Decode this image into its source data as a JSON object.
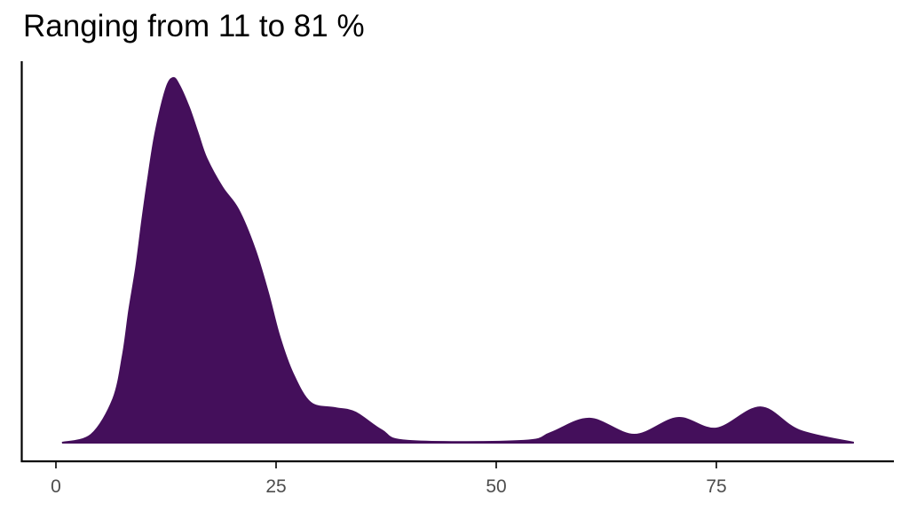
{
  "chart_data": {
    "type": "area",
    "subtype": "density",
    "title": "Ranging from 11 to 81 %",
    "xlabel": "",
    "ylabel": "",
    "xlim": [
      -2.5,
      95
    ],
    "ylim": [
      0,
      1.05
    ],
    "x_ticks": [
      0,
      25,
      50,
      75
    ],
    "x_tick_labels": [
      "0",
      "25",
      "50",
      "75"
    ],
    "y_ticks": [],
    "grid": false,
    "legend": null,
    "fill_color": "#440F5B",
    "series": [
      {
        "name": "density",
        "x": [
          0.7,
          4.0,
          6.5,
          7.6,
          8.3,
          9.1,
          9.8,
          10.5,
          11.3,
          12.5,
          13.3,
          14.0,
          15.1,
          16.1,
          17.1,
          18.9,
          20.7,
          22.6,
          24.1,
          25.4,
          26.9,
          28.9,
          31.7,
          34.0,
          37.0,
          40.0,
          53.1,
          56.2,
          60.6,
          65.7,
          70.6,
          75.0,
          80.0,
          84.4,
          90.6
        ],
        "values": [
          0.0,
          0.022,
          0.12,
          0.24,
          0.36,
          0.48,
          0.61,
          0.73,
          0.85,
          0.97,
          1.0,
          0.98,
          0.92,
          0.85,
          0.78,
          0.7,
          0.64,
          0.53,
          0.41,
          0.29,
          0.19,
          0.11,
          0.095,
          0.083,
          0.034,
          0.005,
          0.005,
          0.027,
          0.066,
          0.022,
          0.068,
          0.039,
          0.097,
          0.034,
          0.0
        ]
      }
    ]
  }
}
